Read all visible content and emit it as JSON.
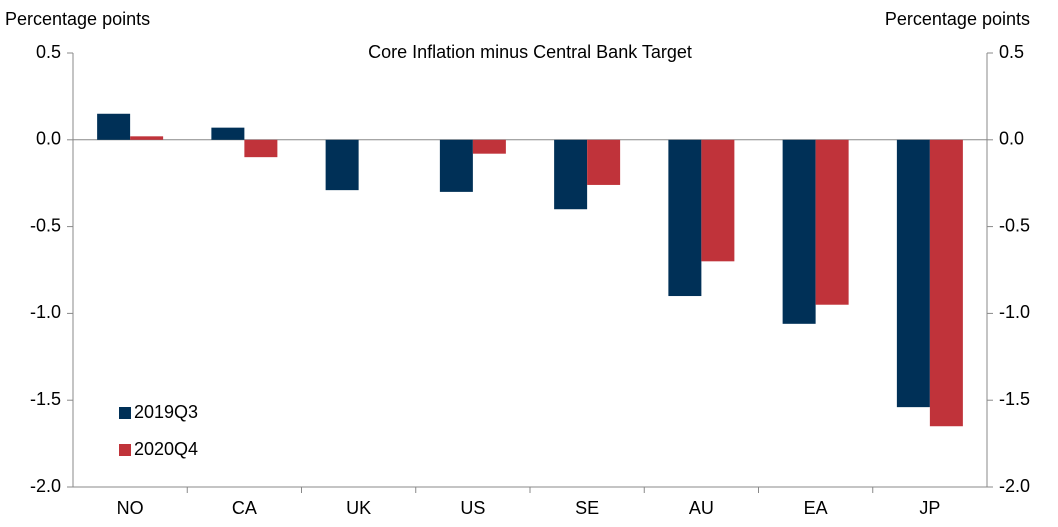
{
  "chart_data": {
    "type": "bar",
    "title": "Core Inflation minus Central Bank Target",
    "y_label": "Percentage points",
    "y2_label": "Percentage points",
    "categories": [
      "NO",
      "CA",
      "UK",
      "US",
      "SE",
      "AU",
      "EA",
      "JP"
    ],
    "series": [
      {
        "name": "2019Q3",
        "color": "#003057",
        "values": [
          0.15,
          0.07,
          -0.29,
          -0.3,
          -0.4,
          -0.9,
          -1.06,
          -1.54
        ]
      },
      {
        "name": "2020Q4",
        "color": "#c0333a",
        "values": [
          0.02,
          -0.1,
          null,
          -0.08,
          -0.26,
          -0.7,
          -0.95,
          -1.65
        ]
      }
    ],
    "ylim": [
      -2,
      0.5
    ],
    "yticks": [
      0.5,
      {
        "value": 0,
        "label": "0.0"
      },
      -0.5,
      {
        "value": -1,
        "label": "-1.0"
      },
      -1.5,
      {
        "value": -2,
        "label": "-2.0"
      }
    ],
    "y2lim": [
      -2,
      0.5
    ],
    "y2ticks": [
      0.5,
      {
        "value": 0,
        "label": "0.0"
      },
      -0.5,
      {
        "value": -1,
        "label": "-1.0"
      },
      -1.5,
      {
        "value": -2,
        "label": "-2.0"
      }
    ],
    "legend": "lower left"
  }
}
